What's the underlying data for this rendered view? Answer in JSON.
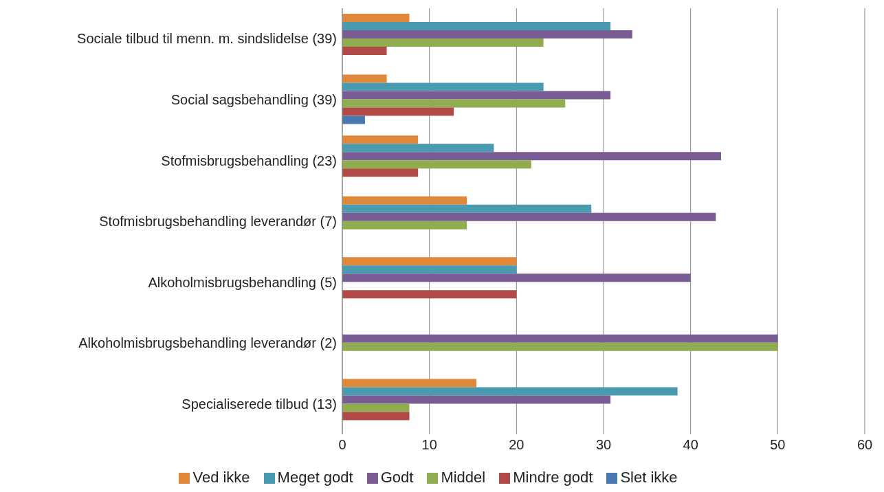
{
  "chart_data": {
    "type": "bar",
    "orientation": "horizontal",
    "categories": [
      "Sociale tilbud til menn. m. sindslidelse (39)",
      "Social sagsbehandling (39)",
      "Stofmisbrugsbehandling (23)",
      "Stofmisbrugsbehandling leverandør (7)",
      "Alkoholmisbrugsbehandling (5)",
      "Alkoholmisbrugsbehandling leverandør (2)",
      "Specialiserede tilbud (13)"
    ],
    "series": [
      {
        "name": "Ved ikke",
        "color": "#e0883a",
        "values": [
          7.7,
          5.1,
          8.7,
          14.3,
          20,
          null,
          15.4
        ]
      },
      {
        "name": "Meget godt",
        "color": "#4a9bb0",
        "values": [
          30.8,
          23.1,
          17.4,
          28.6,
          20,
          null,
          38.5
        ]
      },
      {
        "name": "Godt",
        "color": "#7a5c94",
        "values": [
          33.3,
          30.8,
          43.5,
          42.9,
          40,
          50,
          30.8
        ]
      },
      {
        "name": "Middel",
        "color": "#8fac4f",
        "values": [
          23.1,
          25.6,
          21.7,
          14.3,
          null,
          50,
          7.7
        ]
      },
      {
        "name": "Mindre godt",
        "color": "#b04a47",
        "values": [
          5.1,
          12.8,
          8.7,
          null,
          20,
          null,
          7.7
        ]
      },
      {
        "name": "Slet ikke",
        "color": "#4a78b0",
        "values": [
          null,
          2.6,
          null,
          null,
          null,
          null,
          null
        ]
      }
    ],
    "xlim": [
      0,
      60
    ],
    "xticks": [
      0,
      10,
      20,
      30,
      40,
      50,
      60
    ],
    "grid": "x",
    "legend": "bottom"
  }
}
